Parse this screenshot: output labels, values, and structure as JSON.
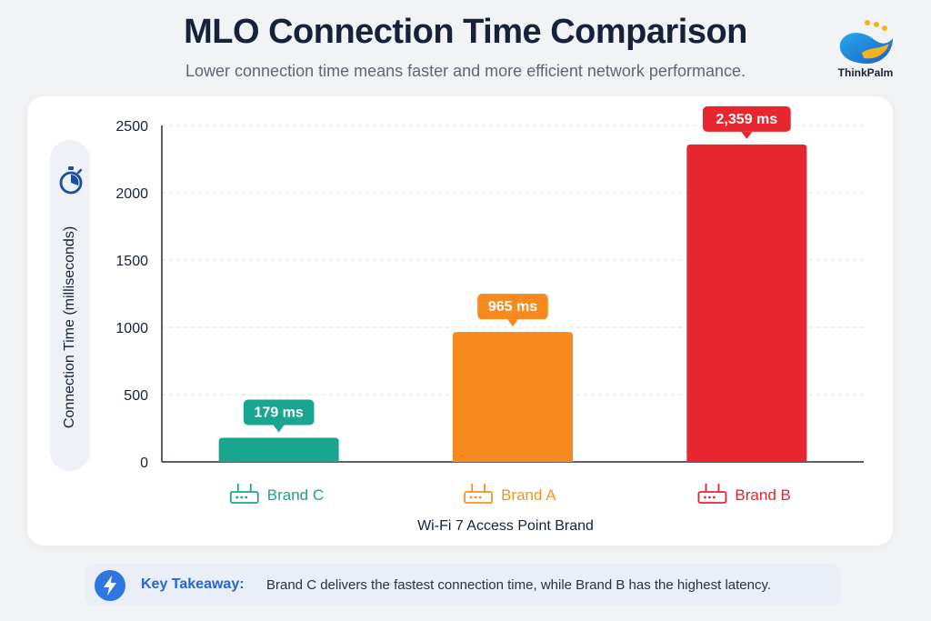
{
  "header": {
    "title": "MLO Connection Time Comparison",
    "subtitle": "Lower connection time means faster and more efficient network performance.",
    "brand_logo_text": "ThinkPalm"
  },
  "chart_data": {
    "type": "bar",
    "title": "MLO Connection Time Comparison",
    "subtitle": "Lower connection time means faster and more efficient network performance.",
    "xlabel": "Wi-Fi 7 Access Point Brand",
    "ylabel": "Connection Time (milliseconds)",
    "categories": [
      "Brand C",
      "Brand A",
      "Brand B"
    ],
    "values": [
      179,
      965,
      2359
    ],
    "data_labels": [
      "179 ms",
      "965 ms",
      "2,359 ms"
    ],
    "colors": [
      "#1aa68e",
      "#f78a1f",
      "#e8262f"
    ],
    "label_colors": [
      "#1aa68e",
      "#f59320",
      "#e2262f"
    ],
    "ylim": [
      0,
      2500
    ],
    "yticks": [
      0,
      500,
      1000,
      1500,
      2000,
      2500
    ],
    "grid": true,
    "legend": "none"
  },
  "icons": {
    "ylabel_icon": "stopwatch-icon",
    "category_icon": "router-icon",
    "takeaway_icon": "lightning-bolt-icon",
    "logo_icon": "thinkpalm-logo"
  },
  "takeaway": {
    "label": "Key Takeaway:",
    "text": "Brand C delivers the fastest connection time, while Brand B has the highest latency."
  }
}
